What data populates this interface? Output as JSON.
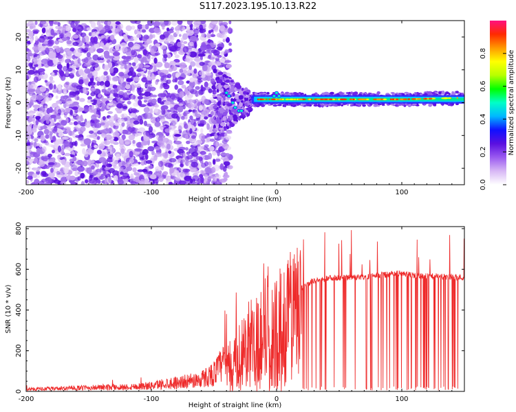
{
  "title": "S117.2023.195.10.13.R22",
  "chart_data": [
    {
      "type": "heatmap",
      "xlabel": "Height of straight line (km)",
      "ylabel": "Frequency (Hz)",
      "xlim": [
        -200,
        150
      ],
      "ylim": [
        -25,
        25
      ],
      "xticks": [
        "-200",
        "-100",
        "0",
        "100"
      ],
      "xtick_values": [
        -200,
        -100,
        0,
        100
      ],
      "yticks": [
        "-20",
        "-10",
        "0",
        "10",
        "20"
      ],
      "ytick_values": [
        -20,
        -10,
        0,
        10,
        20
      ],
      "colorbar": {
        "label": "Normalized spectral amplitude",
        "range": [
          0,
          1
        ],
        "ticks": [
          "0.0",
          "0.2",
          "0.4",
          "0.6",
          "0.8"
        ],
        "tick_values": [
          0.0,
          0.2,
          0.4,
          0.6,
          0.8
        ],
        "colormap": [
          "#ffffff",
          "#d8b8f5",
          "#9a5af0",
          "#5a10e0",
          "#1010ff",
          "#00b8ff",
          "#00ffc8",
          "#00ff00",
          "#b8ff00",
          "#ffff00",
          "#ff9a00",
          "#ff2a00",
          "#ff1080"
        ]
      },
      "description_values": {
        "noise_region_x": [
          -200,
          -45
        ],
        "transition_x": [
          -45,
          -20
        ],
        "signal_band_x": [
          -20,
          150
        ],
        "signal_frequency_hz": [
          1.0,
          1.0,
          1.0,
          1.5
        ],
        "signal_frequency_at_x": [
          -20,
          50,
          100,
          150
        ]
      },
      "grid": false
    },
    {
      "type": "line",
      "xlabel": "Height of straight line (km)",
      "ylabel": "SNR (10 * v/v)",
      "xlim": [
        -200,
        150
      ],
      "ylim": [
        0,
        810
      ],
      "xticks": [
        "-200",
        "-100",
        "0",
        "100"
      ],
      "xtick_values": [
        -200,
        -100,
        0,
        100
      ],
      "yticks": [
        "0",
        "200",
        "400",
        "600",
        "800"
      ],
      "ytick_values": [
        0,
        200,
        400,
        600,
        800
      ],
      "color": "#ee2a2a",
      "series": [
        {
          "x": [
            -200,
            -180,
            -160,
            -140,
            -120,
            -100,
            -90,
            -80,
            -70,
            -60,
            -50,
            -40,
            -35,
            -30,
            -25,
            -20,
            -15,
            -10,
            -5,
            0,
            5,
            10,
            15,
            20,
            25,
            30,
            40,
            50,
            60,
            70,
            80,
            90,
            95,
            100,
            105,
            110,
            120,
            130,
            140,
            150
          ],
          "values": [
            10,
            12,
            15,
            18,
            20,
            25,
            35,
            40,
            45,
            55,
            80,
            140,
            200,
            250,
            280,
            330,
            360,
            380,
            400,
            410,
            430,
            450,
            480,
            510,
            530,
            545,
            555,
            560,
            560,
            565,
            570,
            575,
            580,
            580,
            575,
            570,
            565,
            565,
            560,
            560
          ]
        }
      ],
      "grid": false
    }
  ]
}
